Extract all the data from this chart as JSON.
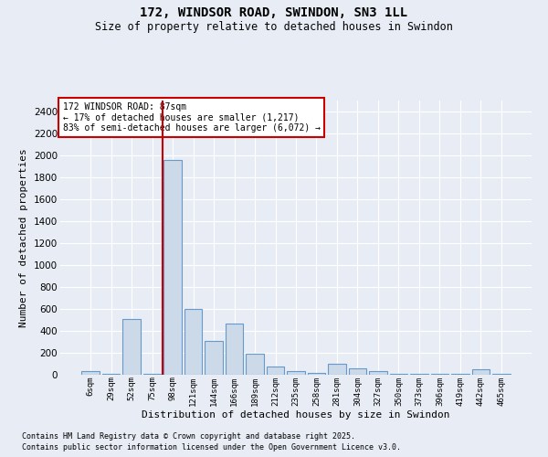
{
  "title": "172, WINDSOR ROAD, SWINDON, SN3 1LL",
  "subtitle": "Size of property relative to detached houses in Swindon",
  "xlabel": "Distribution of detached houses by size in Swindon",
  "ylabel": "Number of detached properties",
  "bar_color": "#ccd9e8",
  "bar_edge_color": "#6699cc",
  "bg_color": "#e8edf5",
  "grid_color": "#ffffff",
  "categories": [
    "6sqm",
    "29sqm",
    "52sqm",
    "75sqm",
    "98sqm",
    "121sqm",
    "144sqm",
    "166sqm",
    "189sqm",
    "212sqm",
    "235sqm",
    "258sqm",
    "281sqm",
    "304sqm",
    "327sqm",
    "350sqm",
    "373sqm",
    "396sqm",
    "419sqm",
    "442sqm",
    "465sqm"
  ],
  "values": [
    30,
    10,
    510,
    10,
    1960,
    600,
    310,
    470,
    195,
    75,
    30,
    20,
    100,
    55,
    30,
    10,
    5,
    5,
    5,
    50,
    5
  ],
  "ylim": [
    0,
    2500
  ],
  "yticks": [
    0,
    200,
    400,
    600,
    800,
    1000,
    1200,
    1400,
    1600,
    1800,
    2000,
    2200,
    2400
  ],
  "annotation_line1": "172 WINDSOR ROAD: 87sqm",
  "annotation_line2": "← 17% of detached houses are smaller (1,217)",
  "annotation_line3": "83% of semi-detached houses are larger (6,072) →",
  "annotation_box_color": "#ffffff",
  "annotation_box_edge": "#cc0000",
  "vline_color": "#cc0000",
  "vline_x_index": 3.52,
  "footnote1": "Contains HM Land Registry data © Crown copyright and database right 2025.",
  "footnote2": "Contains public sector information licensed under the Open Government Licence v3.0."
}
